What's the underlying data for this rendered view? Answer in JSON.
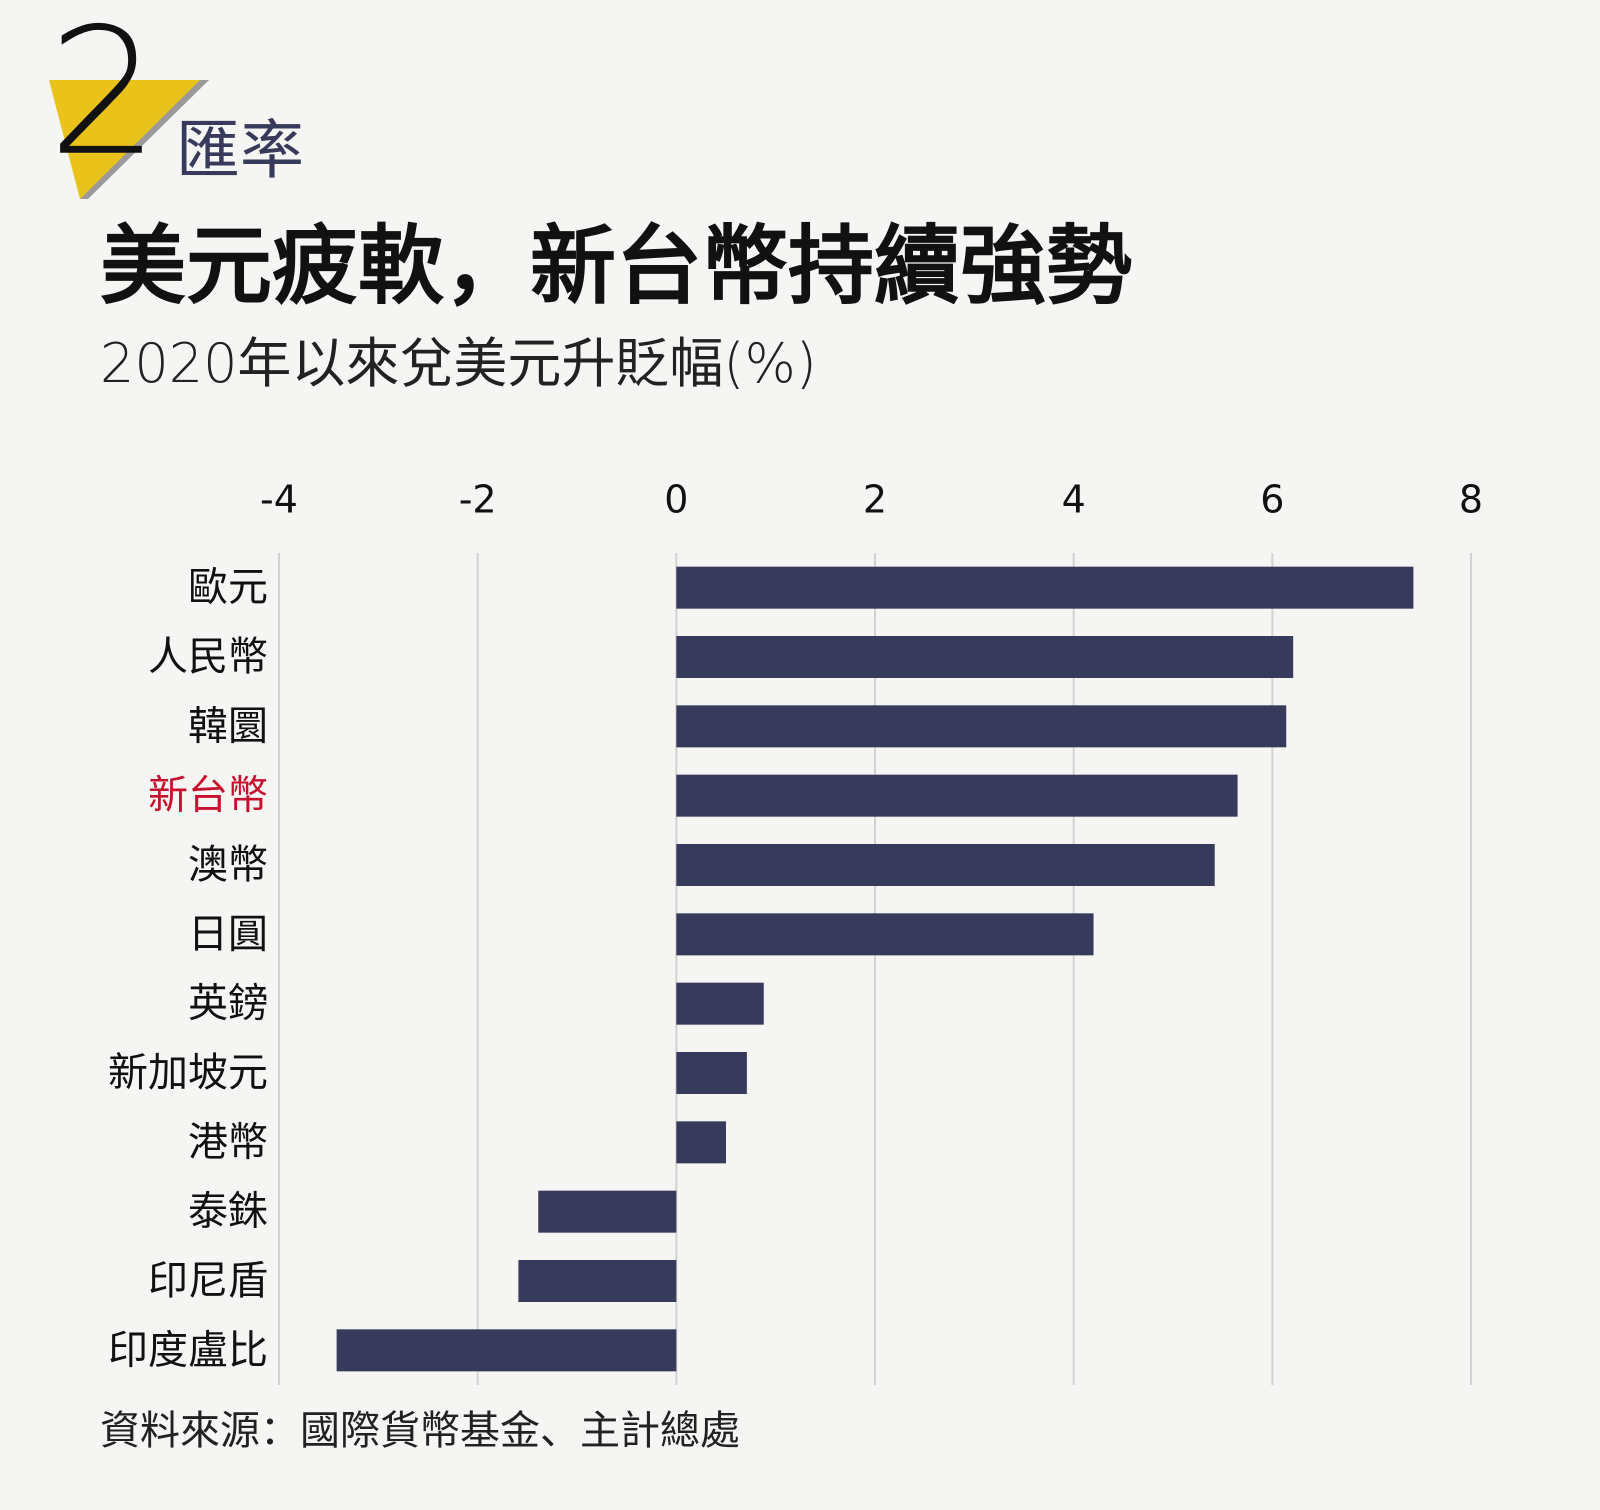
{
  "header": {
    "number": "2",
    "section": "匯率"
  },
  "chart_data": {
    "type": "bar",
    "orientation": "horizontal",
    "title": "美元疲軟，新台幣持續強勢",
    "subtitle": "2020年以來兌美元升貶幅(%)",
    "categories": [
      "歐元",
      "人民幣",
      "韓圜",
      "新台幣",
      "澳幣",
      "日圓",
      "英鎊",
      "新加坡元",
      "港幣",
      "泰銖",
      "印尼盾",
      "印度盧比"
    ],
    "values": [
      7.42,
      6.21,
      6.14,
      5.65,
      5.42,
      4.2,
      0.88,
      0.71,
      0.5,
      -1.39,
      -1.59,
      -3.42
    ],
    "color": "#383a5c",
    "highlight": 3,
    "highlight_color": "#c8102e",
    "xlim": [
      -4,
      8
    ],
    "xticks": [
      -4,
      -2,
      0,
      2,
      4,
      6,
      8
    ],
    "grid": true,
    "source": "資料來源：國際貨幣基金、主計總處"
  }
}
